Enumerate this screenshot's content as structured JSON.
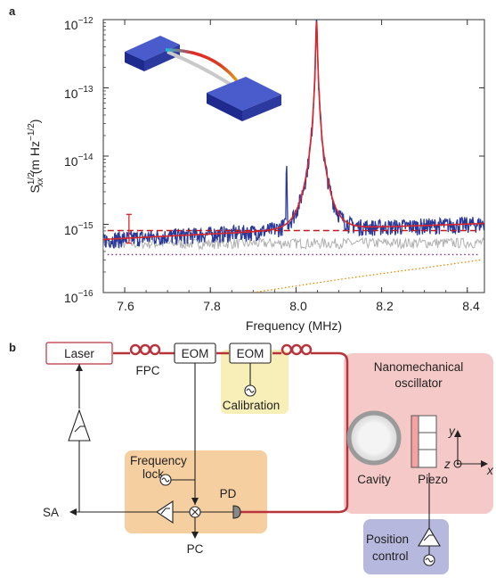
{
  "panel_a": {
    "label": "a",
    "x_tick_labels": [
      "7.6",
      "7.8",
      "8.0",
      "8.2",
      "8.4"
    ],
    "y_tick_base": [
      "10",
      "10",
      "10",
      "10",
      "10"
    ],
    "y_tick_exp": [
      "−12",
      "−13",
      "−14",
      "−15",
      "−16"
    ]
  },
  "panel_b": {
    "label": "b",
    "laser": "Laser",
    "fpc": "FPC",
    "eom1": "EOM",
    "eom2": "EOM",
    "calibration": "Calibration",
    "freq_lock_1": "Frequency",
    "freq_lock_2": "lock",
    "sa": "SA",
    "pd": "PD",
    "pc": "PC",
    "nano_1": "Nanomechanical",
    "nano_2": "oscillator",
    "cavity": "Cavity",
    "piezo": "Piezo",
    "pos_1": "Position",
    "pos_2": "control",
    "axis_x": "x",
    "axis_y": "y",
    "axis_z": "z"
  },
  "chart_data": {
    "type": "line",
    "xlabel": "Frequency (MHz)",
    "ylabel": "S_xx^1/2 (m Hz^-1/2)",
    "xlim": [
      7.55,
      8.44
    ],
    "ylim": [
      1e-16,
      1e-12
    ],
    "yscale": "log",
    "grid": false,
    "x_ticks": [
      7.6,
      7.8,
      8.0,
      8.2,
      8.4
    ],
    "y_ticks": [
      1e-12,
      1e-13,
      1e-14,
      1e-15,
      1e-16
    ],
    "resonance_peak": {
      "x": 8.048,
      "y": 9.5e-13
    },
    "spurious_peak": {
      "x": 7.978,
      "y": 7e-15
    },
    "series": [
      {
        "color": "#2a3a9a",
        "style": "solid",
        "x": [
          7.56,
          7.7,
          7.85,
          7.95,
          8.0,
          8.03,
          8.048,
          8.07,
          8.1,
          8.2,
          8.3,
          8.43
        ],
        "y": [
          6e-16,
          6.6e-16,
          9e-16,
          1.6e-15,
          3.2e-15,
          1.1e-14,
          9.5e-13,
          9e-15,
          3e-15,
          1.2e-15,
          8e-16,
          6.8e-16
        ]
      },
      {
        "color": "#d9262b",
        "style": "solid",
        "x": [
          7.56,
          7.7,
          7.85,
          7.95,
          8.0,
          8.03,
          8.048,
          8.07,
          8.1,
          8.2,
          8.3,
          8.43
        ],
        "y": [
          6e-16,
          6.6e-16,
          9e-16,
          1.6e-15,
          3.2e-15,
          1.1e-14,
          9.5e-13,
          9e-15,
          3e-15,
          1.2e-15,
          8e-16,
          6.8e-16
        ]
      },
      {
        "color": "#c0191f",
        "style": "dashed",
        "x": [
          7.56,
          8.43
        ],
        "y": [
          8.1e-16,
          8.1e-16
        ]
      },
      {
        "color": "#b0b0b0",
        "style": "solid",
        "x": [
          7.56,
          8.43
        ],
        "y": [
          5.2e-16,
          5.4e-16
        ]
      },
      {
        "color": "#7b2a7b",
        "style": "dotted",
        "x": [
          7.56,
          8.43
        ],
        "y": [
          3.6e-16,
          3.6e-16
        ]
      },
      {
        "color": "#e68a00",
        "style": "dotted",
        "x": [
          7.9,
          8.0,
          8.1,
          8.2,
          8.3,
          8.43
        ],
        "y": [
          1e-16,
          1.25e-16,
          1.55e-16,
          1.9e-16,
          2.3e-16,
          3e-16
        ]
      }
    ],
    "error_bar": {
      "x": 7.61,
      "low": 5.3e-16,
      "high": 1.4e-15,
      "color": "#d9262b"
    }
  }
}
